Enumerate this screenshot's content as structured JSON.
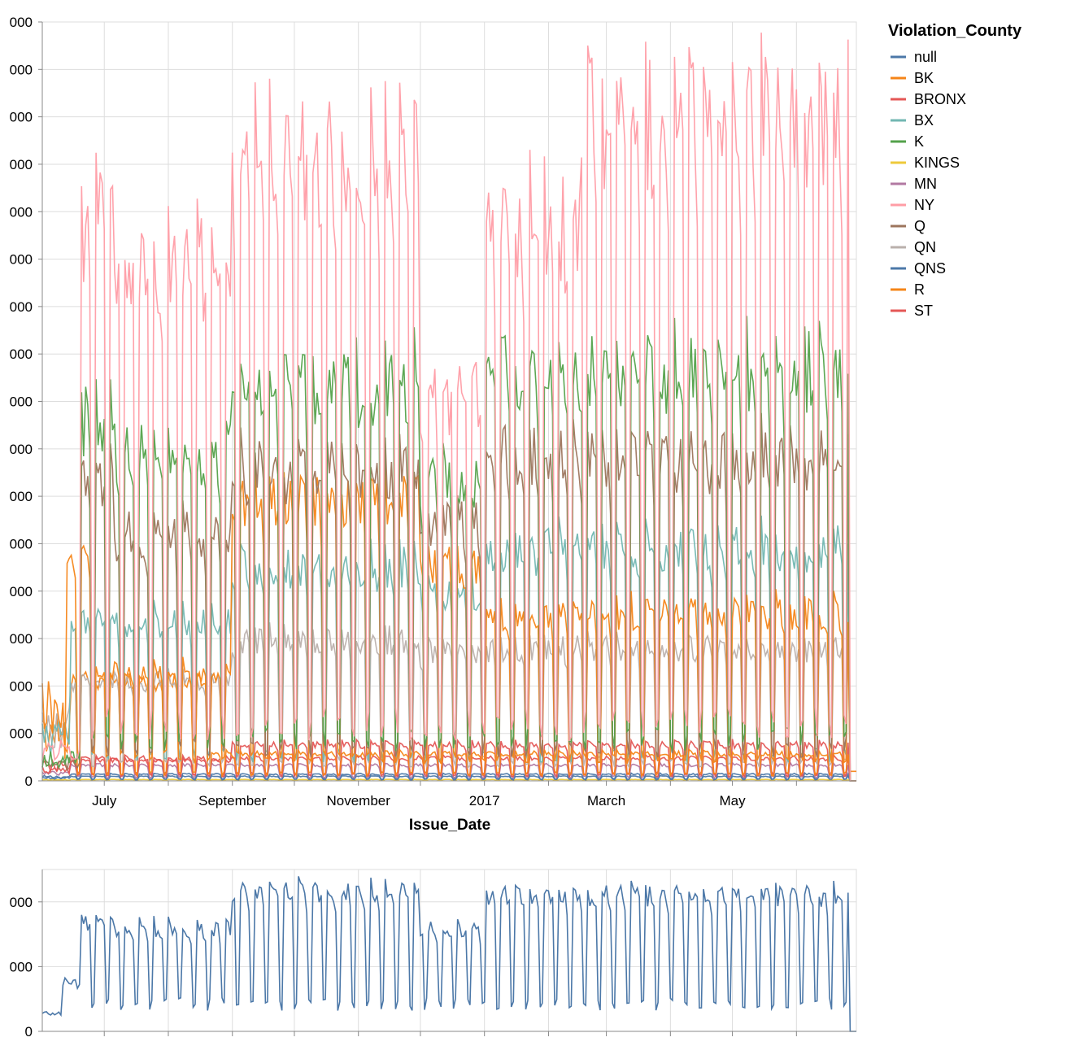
{
  "colors": {
    "null": "#4c78a8",
    "BK": "#f58518",
    "BRONX": "#e45756",
    "BX": "#72b7b2",
    "K": "#54a24b",
    "KINGS": "#eeca3b",
    "MN": "#b279a2",
    "NY": "#ff9da6",
    "Q": "#9d755d",
    "QN": "#bab0ac",
    "QNS": "#4c78a8",
    "R": "#f58518",
    "ST": "#e45756",
    "grid": "#dddddd",
    "axis": "#888888"
  },
  "chart_data": [
    {
      "type": "line",
      "xlabel": "Issue_Date",
      "ylabel": "",
      "x_range": [
        "2016-06-01",
        "2017-06-30"
      ],
      "x_tick_labels": [
        "July",
        "September",
        "November",
        "2017",
        "March",
        "May"
      ],
      "y_tick_labels": [
        "0",
        "000",
        "000",
        "000",
        "000",
        "000",
        "000",
        "000",
        "000",
        "000",
        "000",
        "000",
        "000",
        "000",
        "000",
        "000",
        "000"
      ],
      "y_range": [
        0,
        16000
      ],
      "grid": true,
      "legend_title": "Violation_County",
      "legend_position": "right",
      "series_names": [
        "null",
        "BK",
        "BRONX",
        "BX",
        "K",
        "KINGS",
        "MN",
        "NY",
        "Q",
        "QN",
        "QNS",
        "R",
        "ST"
      ],
      "weekly_pattern": [
        1,
        0.95,
        0.96,
        0.94,
        0.88,
        0.22,
        0.09
      ],
      "series": [
        {
          "name": "NY",
          "before_jun20": 650,
          "levels": [
            {
              "from": "2016-06-20",
              "to": "2016-07-05",
              "value": 12200
            },
            {
              "from": "2016-07-06",
              "to": "2016-08-31",
              "value": 11300
            },
            {
              "from": "2016-09-01",
              "to": "2016-11-30",
              "value": 13800
            },
            {
              "from": "2016-12-01",
              "to": "2016-12-31",
              "value": 8600
            },
            {
              "from": "2017-01-01",
              "to": "2017-02-15",
              "value": 12100
            },
            {
              "from": "2017-02-16",
              "to": "2017-06-26",
              "value": 14500
            }
          ],
          "trough": 1200,
          "after": 0
        },
        {
          "name": "K",
          "before_jun20": 450,
          "levels": [
            {
              "from": "2016-06-20",
              "to": "2016-07-05",
              "value": 8000
            },
            {
              "from": "2016-07-06",
              "to": "2016-08-31",
              "value": 7200
            },
            {
              "from": "2016-09-01",
              "to": "2016-11-30",
              "value": 8700
            },
            {
              "from": "2016-12-01",
              "to": "2016-12-31",
              "value": 6500
            },
            {
              "from": "2017-01-01",
              "to": "2017-06-26",
              "value": 9000
            }
          ],
          "trough": 900,
          "after": 0
        },
        {
          "name": "Q",
          "before_jun20": 350,
          "levels": [
            {
              "from": "2016-06-20",
              "to": "2016-07-05",
              "value": 6500
            },
            {
              "from": "2016-07-06",
              "to": "2016-08-31",
              "value": 5400
            },
            {
              "from": "2016-09-01",
              "to": "2016-11-30",
              "value": 6800
            },
            {
              "from": "2016-12-01",
              "to": "2016-12-31",
              "value": 5600
            },
            {
              "from": "2017-01-01",
              "to": "2017-06-26",
              "value": 7100
            }
          ],
          "trough": 700,
          "after": 0
        },
        {
          "name": "BK",
          "before_jun20": 1500,
          "levels": [
            {
              "from": "2016-06-12",
              "to": "2016-06-25",
              "value": 4800
            },
            {
              "from": "2016-06-26",
              "to": "2016-08-31",
              "value": 2400
            },
            {
              "from": "2016-09-01",
              "to": "2016-11-30",
              "value": 6200
            },
            {
              "from": "2016-12-01",
              "to": "2016-12-31",
              "value": 4800
            },
            {
              "from": "2017-01-01",
              "to": "2017-06-26",
              "value": 3700
            }
          ],
          "trough": 500,
          "after": 0
        },
        {
          "name": "BX",
          "before_jun20": 900,
          "levels": [
            {
              "from": "2016-06-15",
              "to": "2016-08-31",
              "value": 3500
            },
            {
              "from": "2016-09-01",
              "to": "2016-11-30",
              "value": 4700
            },
            {
              "from": "2016-12-01",
              "to": "2016-12-31",
              "value": 4100
            },
            {
              "from": "2017-01-01",
              "to": "2017-06-26",
              "value": 5100
            }
          ],
          "trough": 550,
          "after": 0
        },
        {
          "name": "QN",
          "before_jun20": 1100,
          "levels": [
            {
              "from": "2016-06-15",
              "to": "2016-08-31",
              "value": 2200
            },
            {
              "from": "2016-09-01",
              "to": "2016-11-30",
              "value": 3100
            },
            {
              "from": "2016-12-01",
              "to": "2016-12-31",
              "value": 2800
            },
            {
              "from": "2017-01-01",
              "to": "2017-06-26",
              "value": 2900
            }
          ],
          "trough": 400,
          "after": 0
        },
        {
          "name": "R",
          "before_jun20": 1000,
          "levels": [
            {
              "from": "2016-06-15",
              "to": "2016-08-20",
              "value": 2200
            },
            {
              "from": "2016-08-21",
              "to": "2017-06-26",
              "value": 600
            }
          ],
          "trough": 150,
          "after": 200
        },
        {
          "name": "BRONX",
          "before_jun20": 300,
          "levels": [
            {
              "from": "2016-06-15",
              "to": "2016-08-31",
              "value": 450
            },
            {
              "from": "2016-09-01",
              "to": "2017-06-26",
              "value": 800
            }
          ],
          "trough": 150,
          "after": 0
        },
        {
          "name": "ST",
          "before_jun20": 250,
          "levels": [
            {
              "from": "2016-06-15",
              "to": "2017-06-26",
              "value": 500
            }
          ],
          "trough": 120,
          "after": 0
        },
        {
          "name": "MN",
          "before_jun20": 150,
          "levels": [
            {
              "from": "2016-06-15",
              "to": "2017-06-26",
              "value": 350
            }
          ],
          "trough": 80,
          "after": 0
        },
        {
          "name": "null",
          "before_jun20": 80,
          "levels": [
            {
              "from": "2016-06-15",
              "to": "2017-06-26",
              "value": 150
            }
          ],
          "trough": 40,
          "after": 0
        },
        {
          "name": "QNS",
          "before_jun20": 60,
          "levels": [
            {
              "from": "2016-06-15",
              "to": "2017-06-26",
              "value": 100
            }
          ],
          "trough": 30,
          "after": 0
        },
        {
          "name": "KINGS",
          "before_jun20": 20,
          "levels": [
            {
              "from": "2016-06-15",
              "to": "2017-06-26",
              "value": 30
            }
          ],
          "trough": 10,
          "after": 0
        }
      ]
    },
    {
      "type": "line",
      "xlabel": "",
      "ylabel": "",
      "x_range": [
        "2016-06-01",
        "2017-06-30"
      ],
      "y_tick_labels": [
        "0",
        "000",
        "000"
      ],
      "y_range": [
        0,
        50000
      ],
      "grid": true,
      "series": [
        {
          "name": "total",
          "color": "#4c78a8",
          "points": [
            {
              "from": "2016-06-01",
              "to": "2016-06-10",
              "value": 5500
            },
            {
              "from": "2016-06-11",
              "to": "2016-06-19",
              "value": 15000
            },
            {
              "from": "2016-06-20",
              "to": "2016-07-05",
              "value": 35000
            },
            {
              "from": "2016-07-06",
              "to": "2016-08-31",
              "value": 33000
            },
            {
              "from": "2016-09-01",
              "to": "2016-11-30",
              "value": 45000
            },
            {
              "from": "2016-12-01",
              "to": "2016-12-31",
              "value": 33000
            },
            {
              "from": "2017-01-01",
              "to": "2017-06-26",
              "value": 44000
            }
          ],
          "trough": 8000
        }
      ]
    }
  ]
}
